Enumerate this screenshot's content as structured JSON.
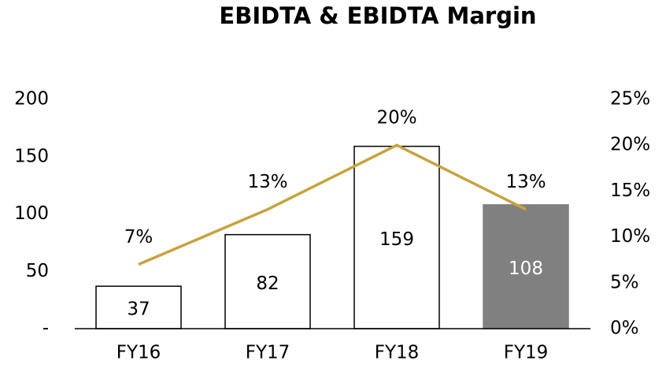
{
  "chart_data": {
    "type": "bar",
    "title": "EBIDTA & EBIDTA Margin",
    "categories": [
      "FY16",
      "FY17",
      "FY18",
      "FY19"
    ],
    "series": [
      {
        "type": "bar",
        "values": [
          37,
          82,
          159,
          108
        ],
        "colors": [
          "#ffffff",
          "#ffffff",
          "#ffffff",
          "#808080"
        ]
      },
      {
        "type": "line",
        "axis": "y2",
        "color": "#c8a23c",
        "values": [
          7,
          13,
          20,
          13
        ],
        "value_labels": [
          "7%",
          "13%",
          "20%",
          "13%"
        ]
      }
    ],
    "ylim": [
      0,
      200
    ],
    "yticks": [
      {
        "value": 0,
        "label": "-"
      },
      50,
      100,
      150,
      200
    ],
    "y2lim": [
      0,
      25
    ],
    "y2ticks": [
      {
        "value": 0,
        "label": "0%"
      },
      {
        "value": 5,
        "label": "5%"
      },
      {
        "value": 10,
        "label": "10%"
      },
      {
        "value": 15,
        "label": "15%"
      },
      {
        "value": 20,
        "label": "20%"
      },
      {
        "value": 25,
        "label": "25%"
      }
    ]
  }
}
